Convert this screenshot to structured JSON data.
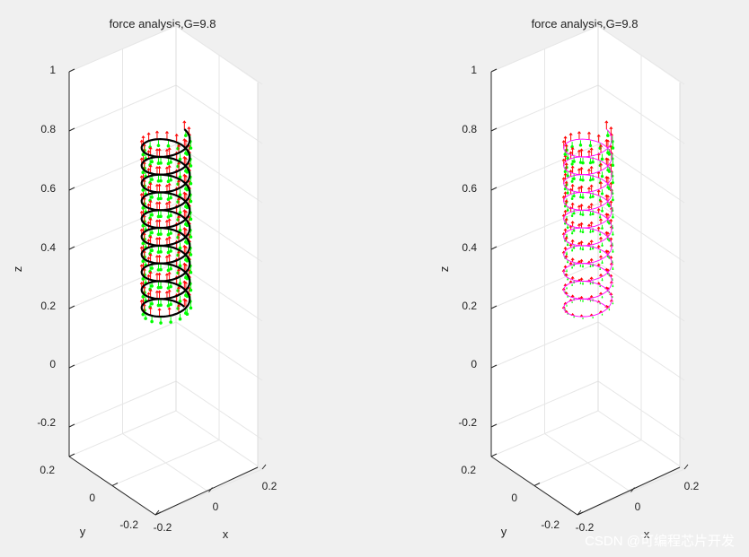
{
  "watermark": "CSDN @可编程芯片开发",
  "chart_data": [
    {
      "type": "3d-helix-quiver",
      "title": "force analysis,G=9.8",
      "xlabel": "x",
      "ylabel": "y",
      "zlabel": "z",
      "xlim": [
        -0.2,
        0.2
      ],
      "ylim": [
        -0.2,
        0.2
      ],
      "zlim": [
        -0.3,
        1
      ],
      "xticks": [
        "-0.2",
        "0",
        "0.2"
      ],
      "yticks": [
        "0.2",
        "0",
        "-0.2"
      ],
      "zticks": [
        "1",
        "0.8",
        "0.6",
        "0.4",
        "0.2",
        "0",
        "-0.2"
      ],
      "grid": true,
      "helix": {
        "radius": 0.07,
        "z_start": 0.2,
        "z_end": 0.8,
        "turns": 10,
        "color": "#000000"
      },
      "series": [
        {
          "name": "",
          "color": "#ff0000"
        },
        {
          "name": "",
          "color": "#00ff00"
        }
      ]
    },
    {
      "type": "3d-helix-quiver",
      "title": "force analysis,G=9.8",
      "xlabel": "x",
      "ylabel": "y",
      "zlabel": "z",
      "xlim": [
        -0.2,
        0.2
      ],
      "ylim": [
        -0.2,
        0.2
      ],
      "zlim": [
        -0.3,
        1
      ],
      "xticks": [
        "-0.2",
        "0",
        "0.2"
      ],
      "yticks": [
        "0.2",
        "0",
        "-0.2"
      ],
      "zticks": [
        "1",
        "0.8",
        "0.6",
        "0.4",
        "0.2",
        "0",
        "-0.2"
      ],
      "grid": true,
      "helix": {
        "radius": 0.07,
        "z_start": 0.2,
        "z_end": 0.8,
        "turns": 10,
        "color": "#ff00ff"
      },
      "series": [
        {
          "name": "",
          "color": "#ff0000"
        },
        {
          "name": "",
          "color": "#00ff00"
        }
      ]
    }
  ]
}
